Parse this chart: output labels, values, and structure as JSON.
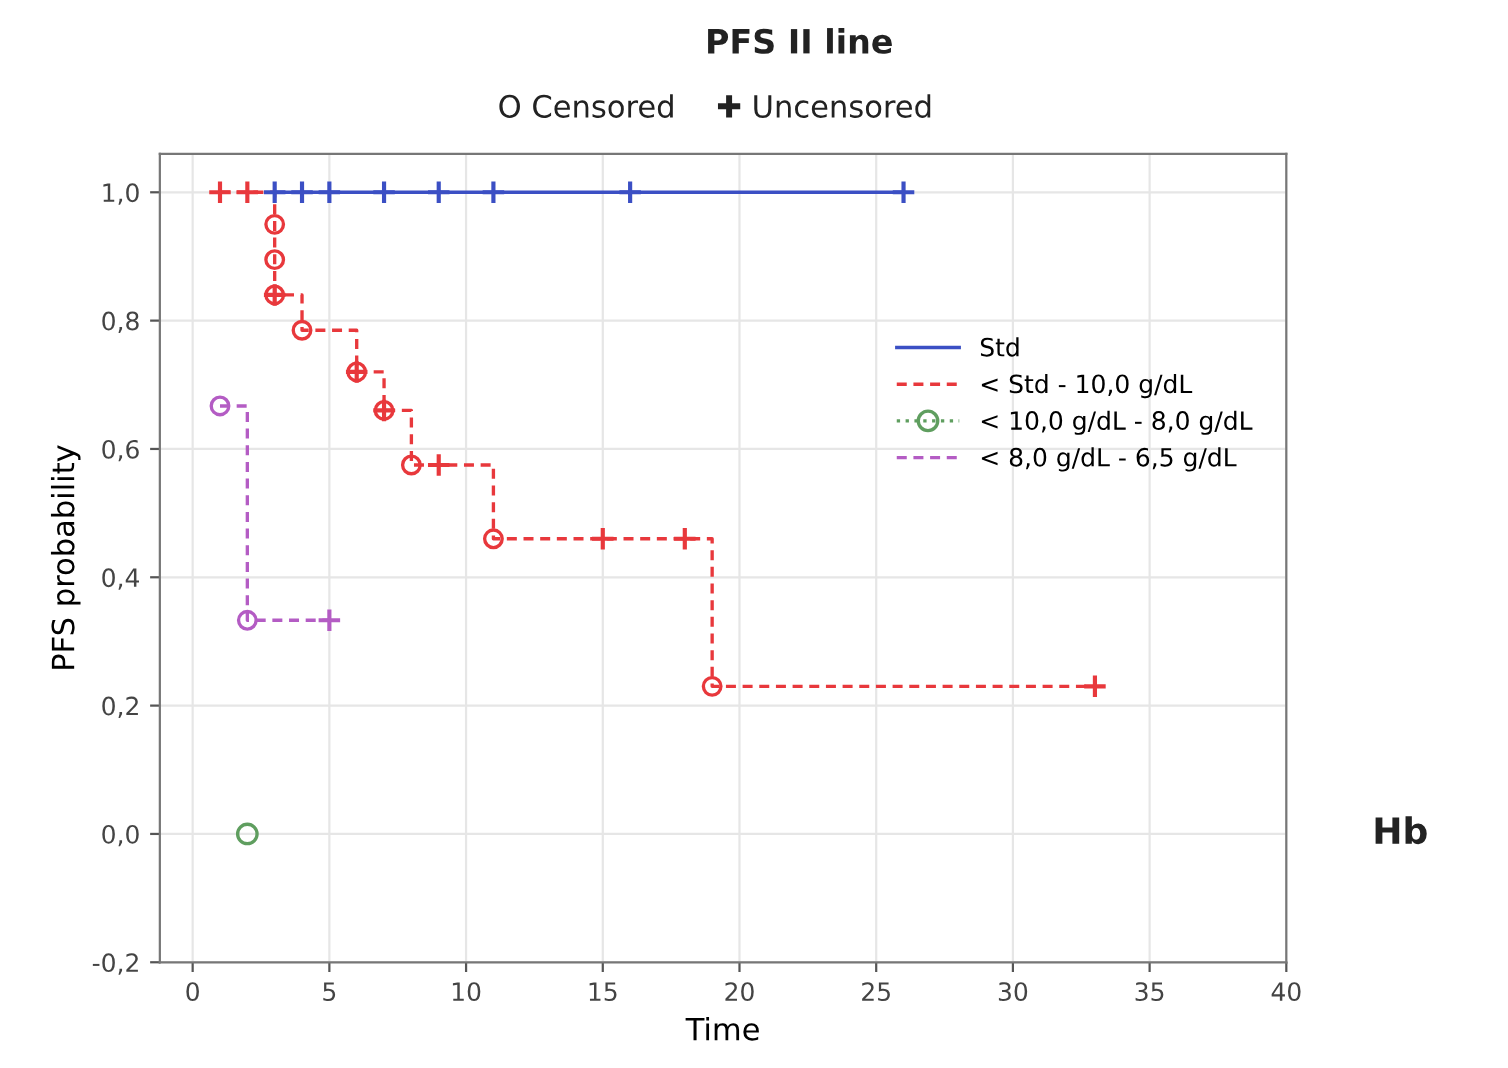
{
  "chart_data": {
    "type": "step",
    "title": "PFS II line",
    "xlabel": "Time",
    "ylabel": "PFS probability",
    "annotations": [
      "O Censored",
      "✚ Uncensored",
      "Hb"
    ],
    "xlim": [
      -1.2,
      40
    ],
    "ylim": [
      -0.2,
      1.06
    ],
    "xticks": [
      0,
      5,
      10,
      15,
      20,
      25,
      30,
      35,
      40
    ],
    "yticks": [
      {
        "value": -0.2,
        "label": "-0,2"
      },
      {
        "value": 0,
        "label": "0,0"
      },
      {
        "value": 0.2,
        "label": "0,2"
      },
      {
        "value": 0.4,
        "label": "0,4"
      },
      {
        "value": 0.6,
        "label": "0,6"
      },
      {
        "value": 0.8,
        "label": "0,8"
      },
      {
        "value": 1.0,
        "label": "1,0"
      }
    ],
    "grid": true,
    "legend": "right",
    "series": [
      {
        "name": "Std",
        "color": "#3b4fc4",
        "line_style": "solid",
        "x": [
          3,
          4,
          5,
          7,
          9,
          11,
          16,
          26
        ],
        "values": [
          1.0,
          1.0,
          1.0,
          1.0,
          1.0,
          1.0,
          1.0,
          1.0
        ]
      },
      {
        "name": "< Std - 10,0 g/dL",
        "color": "#e8383c",
        "line_style": "dashed",
        "x": [
          1,
          2,
          3,
          3,
          3,
          4,
          6,
          7,
          8,
          9,
          11,
          15,
          18,
          19,
          33
        ],
        "values": [
          1.0,
          1.0,
          0.95,
          0.895,
          0.84,
          0.785,
          0.72,
          0.66,
          0.575,
          0.575,
          0.46,
          0.46,
          0.46,
          0.23,
          0.23
        ]
      },
      {
        "name": "< 10,0 g/dL - 8,0 g/dL",
        "color": "#5f9e5f",
        "type": "line",
        "marker": "circle",
        "line_style": "dotted",
        "x": [
          2
        ],
        "values": [
          0.0
        ]
      },
      {
        "name": "< 8,0 g/dL - 6,5 g/dL",
        "color": "#b45cc4",
        "line_style": "dashed",
        "x": [
          1,
          2,
          5
        ],
        "values": [
          0.667,
          0.333,
          0.333
        ]
      },
      {
        "color": "#3b4fc4",
        "type": "scatter",
        "marker": "cross",
        "x": [
          3,
          4,
          5,
          7,
          9,
          11,
          16,
          26
        ],
        "values": [
          1.0,
          1.0,
          1.0,
          1.0,
          1.0,
          1.0,
          1.0,
          1.0
        ]
      },
      {
        "color": "#e8383c",
        "type": "scatter",
        "marker": "circle",
        "x": [
          3,
          3,
          3,
          4,
          6,
          7,
          8,
          11,
          19
        ],
        "values": [
          0.95,
          0.895,
          0.84,
          0.785,
          0.72,
          0.66,
          0.575,
          0.46,
          0.23
        ]
      },
      {
        "color": "#e8383c",
        "type": "scatter",
        "marker": "cross",
        "x": [
          1,
          2,
          3,
          6,
          7,
          9,
          15,
          18,
          33
        ],
        "values": [
          1.0,
          1.0,
          0.84,
          0.72,
          0.66,
          0.575,
          0.46,
          0.46,
          0.23
        ]
      },
      {
        "color": "#b45cc4",
        "type": "scatter",
        "marker": "circle",
        "x": [
          1,
          2
        ],
        "values": [
          0.667,
          0.333
        ]
      },
      {
        "color": "#b45cc4",
        "type": "scatter",
        "marker": "cross",
        "x": [
          5
        ],
        "values": [
          0.333
        ]
      }
    ]
  }
}
